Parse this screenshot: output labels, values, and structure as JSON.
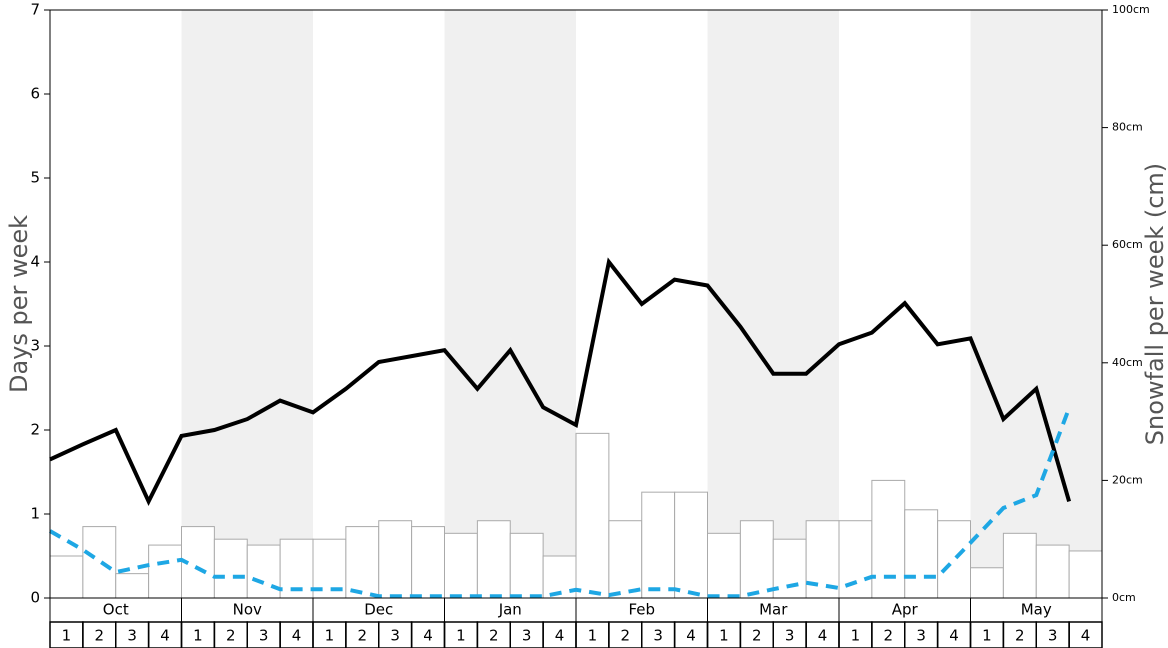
{
  "chart_data": {
    "type": "bar",
    "y_label": "Days per week",
    "y2_label": "Snowfall per week (cm)",
    "months": [
      "Oct",
      "Nov",
      "Dec",
      "Jan",
      "Feb",
      "Mar",
      "Apr",
      "May"
    ],
    "categories": [
      1,
      2,
      3,
      4,
      1,
      2,
      3,
      4,
      1,
      2,
      3,
      4,
      1,
      2,
      3,
      4,
      1,
      2,
      3,
      4,
      1,
      2,
      3,
      4,
      1,
      2,
      3,
      4,
      1,
      2,
      3,
      4
    ],
    "ylim": [
      0,
      7
    ],
    "yticks": [
      0,
      1,
      2,
      3,
      4,
      5,
      6,
      7
    ],
    "y2lim": [
      0,
      100
    ],
    "y2ticks": [
      {
        "value": 0,
        "label": "0cm"
      },
      {
        "value": 20,
        "label": "20cm"
      },
      {
        "value": 40,
        "label": "40cm"
      },
      {
        "value": 60,
        "label": "60cm"
      },
      {
        "value": 80,
        "label": "80cm"
      },
      {
        "value": 100,
        "label": "100cm"
      }
    ],
    "series": [
      {
        "type": "bar",
        "color": "#ffffff",
        "values": [
          0.5,
          0.85,
          0.29,
          0.63,
          0.85,
          0.7,
          0.63,
          0.7,
          0.7,
          0.85,
          0.92,
          0.85,
          0.77,
          0.92,
          0.77,
          0.5,
          1.96,
          0.92,
          1.26,
          1.26,
          0.77,
          0.92,
          0.7,
          0.92,
          0.92,
          1.4,
          1.05,
          0.92,
          0.36,
          0.77,
          0.63,
          0.56
        ]
      },
      {
        "type": "line",
        "color": "#000000",
        "values": [
          1.65,
          1.83,
          2.0,
          1.15,
          1.93,
          2.0,
          2.13,
          2.35,
          2.21,
          2.49,
          2.81,
          2.88,
          2.95,
          2.49,
          2.95,
          2.27,
          2.06,
          4.0,
          3.5,
          3.79,
          3.72,
          3.23,
          2.67,
          2.67,
          3.02,
          3.16,
          3.51,
          3.02,
          3.09,
          2.13,
          2.49,
          1.15
        ]
      },
      {
        "type": "line",
        "dashed": true,
        "axis": "y2",
        "color": "#1ea7e4",
        "values": [
          11.4,
          8.2,
          4.4,
          5.6,
          6.5,
          3.6,
          3.6,
          1.5,
          1.5,
          1.5,
          0.3,
          0.3,
          0.3,
          0.3,
          0.3,
          0.3,
          1.4,
          0.5,
          1.5,
          1.5,
          0.3,
          0.3,
          1.5,
          2.6,
          1.7,
          3.6,
          3.6,
          3.6,
          9.4,
          15.3,
          17.5,
          32.3
        ]
      }
    ]
  }
}
